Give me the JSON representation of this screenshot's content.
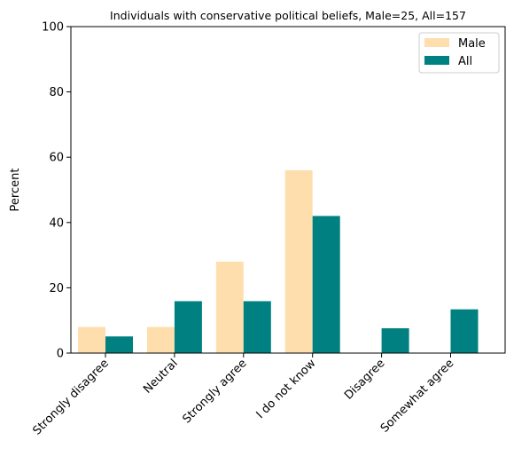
{
  "chart_data": {
    "type": "bar",
    "title": "Individuals with conservative political beliefs, Male=25, All=157",
    "xlabel": "",
    "ylabel": "Percent",
    "ylim": [
      0,
      100
    ],
    "yticks": [
      "0",
      "20",
      "40",
      "60",
      "80",
      "100"
    ],
    "categories": [
      "Strongly disagree",
      "Neutral",
      "Strongly agree",
      "I do not know",
      "Disagree",
      "Somewhat agree"
    ],
    "series": [
      {
        "name": "Male",
        "color": "#FFDEAD",
        "values": [
          8,
          8,
          28,
          56,
          0,
          0
        ]
      },
      {
        "name": "All",
        "color": "#008080",
        "values": [
          5.1,
          15.9,
          15.9,
          42,
          7.6,
          13.4
        ]
      }
    ],
    "legend": "top-right",
    "grid": false
  }
}
